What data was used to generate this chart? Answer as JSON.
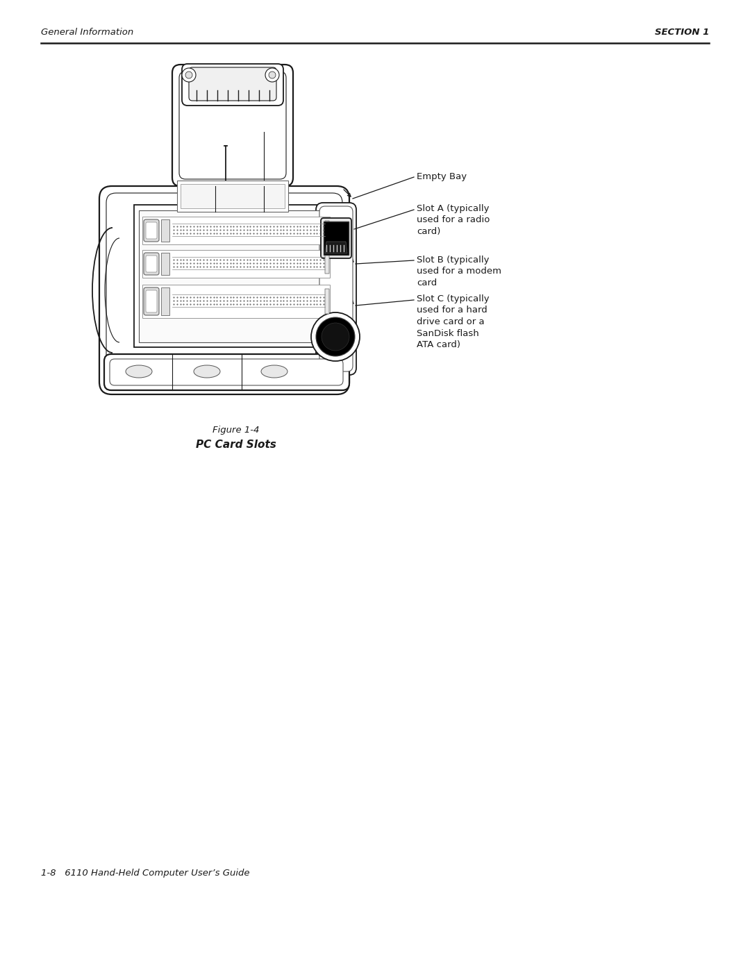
{
  "page_width": 10.8,
  "page_height": 13.97,
  "bg_color": "#ffffff",
  "header_left": "General Information",
  "header_right": "SECTION 1",
  "footer_text": "1-8   6110 Hand-Held Computer User’s Guide",
  "figure_caption_line1": "Figure 1-4",
  "figure_caption_line2": "PC Card Slots",
  "annot_empty_bay": "Empty Bay",
  "annot_slot_a": "Slot A (typically\nused for a radio\ncard)",
  "annot_slot_b": "Slot B (typically\nused for a modem\ncard",
  "annot_slot_c": "Slot C (typically\nused for a hard\ndrive card or a\nSanDisk flash\nATA card)"
}
